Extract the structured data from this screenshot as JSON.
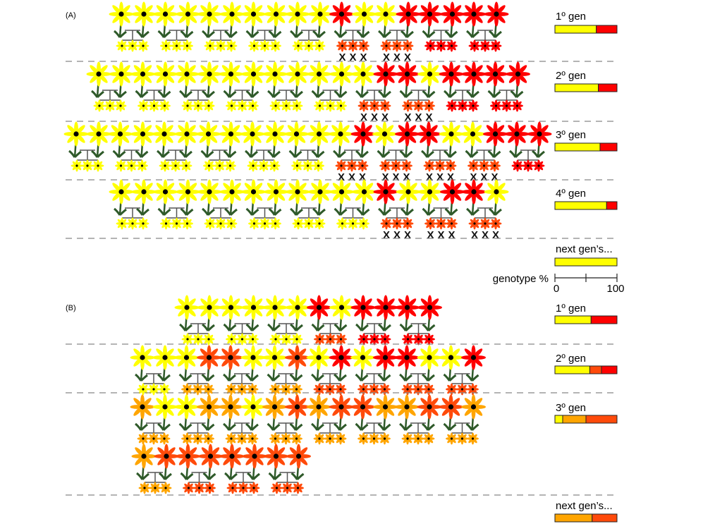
{
  "colors": {
    "Y": "#ffff00",
    "R": "#ff0000",
    "OR": "#ff4a0a",
    "O": "#ffa500",
    "stem": "#2f5a2a",
    "connector": "#555555",
    "divider": "#888888"
  },
  "lethal_mark": "X",
  "axis": {
    "label": "genotype %",
    "tick_labels": [
      "0",
      "100"
    ],
    "ticks": [
      0,
      50,
      100
    ]
  },
  "panels": [
    {
      "label": "(A)",
      "generations": [
        {
          "label": "1º gen",
          "rows": [
            [
              {
                "p": [
                  "Y",
                  "Y"
                ],
                "c": "Y"
              },
              {
                "p": [
                  "Y",
                  "Y"
                ],
                "c": "Y"
              },
              {
                "p": [
                  "Y",
                  "Y"
                ],
                "c": "Y"
              },
              {
                "p": [
                  "Y",
                  "Y"
                ],
                "c": "Y"
              },
              {
                "p": [
                  "Y",
                  "Y"
                ],
                "c": "Y"
              },
              {
                "p": [
                  "R",
                  "Y"
                ],
                "c": "OR",
                "x": true
              },
              {
                "p": [
                  "Y",
                  "R"
                ],
                "c": "OR",
                "x": true
              },
              {
                "p": [
                  "R",
                  "R"
                ],
                "c": "R"
              },
              {
                "p": [
                  "R",
                  "R"
                ],
                "c": "R"
              }
            ]
          ],
          "bar": [
            {
              "c": "Y",
              "v": 66.7
            },
            {
              "c": "R",
              "v": 33.3
            }
          ]
        },
        {
          "label": "2º gen",
          "rows": [
            [
              {
                "p": [
                  "Y",
                  "Y"
                ],
                "c": "Y"
              },
              {
                "p": [
                  "Y",
                  "Y"
                ],
                "c": "Y"
              },
              {
                "p": [
                  "Y",
                  "Y"
                ],
                "c": "Y"
              },
              {
                "p": [
                  "Y",
                  "Y"
                ],
                "c": "Y"
              },
              {
                "p": [
                  "Y",
                  "Y"
                ],
                "c": "Y"
              },
              {
                "p": [
                  "Y",
                  "Y"
                ],
                "c": "Y"
              },
              {
                "p": [
                  "Y",
                  "R"
                ],
                "c": "OR",
                "x": true
              },
              {
                "p": [
                  "R",
                  "Y"
                ],
                "c": "OR",
                "x": true
              },
              {
                "p": [
                  "R",
                  "R"
                ],
                "c": "R"
              },
              {
                "p": [
                  "R",
                  "R"
                ],
                "c": "R"
              }
            ]
          ],
          "bar": [
            {
              "c": "Y",
              "v": 70
            },
            {
              "c": "R",
              "v": 30
            }
          ]
        },
        {
          "label": "3º gen",
          "rows": [
            [
              {
                "p": [
                  "Y",
                  "Y"
                ],
                "c": "Y"
              },
              {
                "p": [
                  "Y",
                  "Y"
                ],
                "c": "Y"
              },
              {
                "p": [
                  "Y",
                  "Y"
                ],
                "c": "Y"
              },
              {
                "p": [
                  "Y",
                  "Y"
                ],
                "c": "Y"
              },
              {
                "p": [
                  "Y",
                  "Y"
                ],
                "c": "Y"
              },
              {
                "p": [
                  "Y",
                  "Y"
                ],
                "c": "Y"
              },
              {
                "p": [
                  "Y",
                  "R"
                ],
                "c": "OR",
                "x": true
              },
              {
                "p": [
                  "Y",
                  "R"
                ],
                "c": "OR",
                "x": true
              },
              {
                "p": [
                  "R",
                  "Y"
                ],
                "c": "OR",
                "x": true
              },
              {
                "p": [
                  "Y",
                  "R"
                ],
                "c": "OR",
                "x": true
              },
              {
                "p": [
                  "R",
                  "R"
                ],
                "c": "R"
              }
            ]
          ],
          "bar": [
            {
              "c": "Y",
              "v": 72.7
            },
            {
              "c": "R",
              "v": 27.3
            }
          ]
        },
        {
          "label": "4º gen",
          "rows": [
            [
              {
                "p": [
                  "Y",
                  "Y"
                ],
                "c": "Y"
              },
              {
                "p": [
                  "Y",
                  "Y"
                ],
                "c": "Y"
              },
              {
                "p": [
                  "Y",
                  "Y"
                ],
                "c": "Y"
              },
              {
                "p": [
                  "Y",
                  "Y"
                ],
                "c": "Y"
              },
              {
                "p": [
                  "Y",
                  "Y"
                ],
                "c": "Y"
              },
              {
                "p": [
                  "Y",
                  "Y"
                ],
                "c": "Y"
              },
              {
                "p": [
                  "R",
                  "Y"
                ],
                "c": "OR",
                "x": true
              },
              {
                "p": [
                  "Y",
                  "R"
                ],
                "c": "OR",
                "x": true
              },
              {
                "p": [
                  "R",
                  "Y"
                ],
                "c": "OR",
                "x": true
              }
            ]
          ],
          "bar": [
            {
              "c": "Y",
              "v": 83.3
            },
            {
              "c": "R",
              "v": 16.7
            }
          ]
        }
      ],
      "next": {
        "label": "next gen’s...",
        "bar": [
          {
            "c": "Y",
            "v": 100
          }
        ]
      }
    },
    {
      "label": "(B)",
      "generations": [
        {
          "label": "1º gen",
          "rows": [
            [
              {
                "p": [
                  "Y",
                  "Y"
                ],
                "c": "Y"
              },
              {
                "p": [
                  "Y",
                  "Y"
                ],
                "c": "Y"
              },
              {
                "p": [
                  "Y",
                  "Y"
                ],
                "c": "Y"
              },
              {
                "p": [
                  "R",
                  "Y"
                ],
                "c": "OR"
              },
              {
                "p": [
                  "R",
                  "R"
                ],
                "c": "R"
              },
              {
                "p": [
                  "R",
                  "R"
                ],
                "c": "R"
              }
            ]
          ],
          "bar": [
            {
              "c": "Y",
              "v": 58.3
            },
            {
              "c": "R",
              "v": 41.7
            }
          ]
        },
        {
          "label": "2º gen",
          "rows": [
            [
              {
                "p": [
                  "Y",
                  "Y"
                ],
                "c": "Y"
              },
              {
                "p": [
                  "Y",
                  "OR"
                ],
                "c": "O"
              },
              {
                "p": [
                  "OR",
                  "Y"
                ],
                "c": "O"
              },
              {
                "p": [
                  "Y",
                  "OR"
                ],
                "c": "O"
              },
              {
                "p": [
                  "Y",
                  "R"
                ],
                "c": "OR"
              },
              {
                "p": [
                  "Y",
                  "R"
                ],
                "c": "OR"
              },
              {
                "p": [
                  "R",
                  "Y"
                ],
                "c": "OR"
              },
              {
                "p": [
                  "Y",
                  "R"
                ],
                "c": "OR"
              }
            ]
          ],
          "bar": [
            {
              "c": "Y",
              "v": 56.2
            },
            {
              "c": "OR",
              "v": 18.8
            },
            {
              "c": "R",
              "v": 25
            }
          ]
        },
        {
          "label": "3º gen",
          "rows": [
            [
              {
                "p": [
                  "O",
                  "Y"
                ],
                "c": "O"
              },
              {
                "p": [
                  "Y",
                  "O"
                ],
                "c": "O"
              },
              {
                "p": [
                  "O",
                  "Y"
                ],
                "c": "O"
              },
              {
                "p": [
                  "O",
                  "OR"
                ],
                "c": "O"
              },
              {
                "p": [
                  "O",
                  "OR"
                ],
                "c": "O"
              },
              {
                "p": [
                  "OR",
                  "O"
                ],
                "c": "O"
              },
              {
                "p": [
                  "O",
                  "OR"
                ],
                "c": "O"
              },
              {
                "p": [
                  "OR",
                  "O"
                ],
                "c": "O"
              }
            ],
            [
              {
                "p": [
                  "O",
                  "OR"
                ],
                "c": "O"
              },
              {
                "p": [
                  "OR",
                  "OR"
                ],
                "c": "OR"
              },
              {
                "p": [
                  "OR",
                  "OR"
                ],
                "c": "OR"
              },
              {
                "p": [
                  "OR",
                  "OR"
                ],
                "c": "OR"
              }
            ]
          ],
          "bar": [
            {
              "c": "Y",
              "v": 12.5
            },
            {
              "c": "O",
              "v": 37.5
            },
            {
              "c": "OR",
              "v": 50
            }
          ]
        }
      ],
      "next": {
        "label": "next gen’s...",
        "bar": [
          {
            "c": "O",
            "v": 60
          },
          {
            "c": "OR",
            "v": 40
          }
        ]
      }
    }
  ]
}
